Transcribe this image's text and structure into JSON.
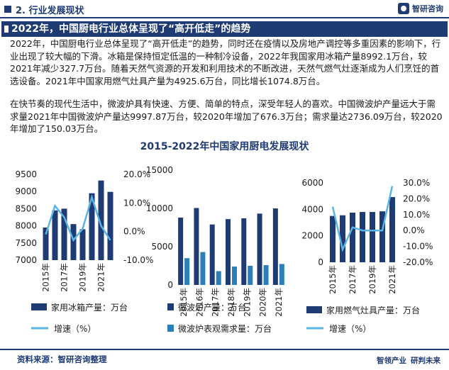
{
  "header": {
    "section": "2. 行业发展现状",
    "brand": "智研咨询"
  },
  "headline": "2022年，中国厨电行业总体呈现了“高开低走”的趋势",
  "paragraphs": [
    "2022年，中国厨电行业总体呈现了“高开低走”的趋势，同时还在疫情以及房地产调控等多重因素的影响下，行业出现了较大幅的下滑。冰箱是保持恒定低温的一种制冷设备，2022年我国家用冰箱产量8992.1万台，较2021年减少327.7万台。随着天然气资源的开发和利用技术的不断改进，天然气燃气灶逐渐成为人们烹饪的首选设备。2021年中国家用燃气灶具产量为4925.6万台，同比增长1074.8万台。",
    "在快节奏的现代生活中，微波炉具有快速、方便、简单的特点，深受年轻人的喜欢。中国微波炉产量远大于需求量2021年中国微波炉产量达9997.87万台，较2020年增加了676.3万台；需求量达2736.09万台，较2020年增加了150.03万台。"
  ],
  "chart_title": "2015-2022年中国家用厨电发展现状",
  "colors": {
    "bar_dark": "#1f3b73",
    "bar_teal": "#2b7fb8",
    "line": "#5ab4e6"
  },
  "chart_data": [
    {
      "type": "bar",
      "categories": [
        "2015年",
        "2016年",
        "2017年",
        "2018年",
        "2019年",
        "2020年",
        "2021年",
        "2022年"
      ],
      "tick_labels": [
        "2015年",
        "2017年",
        "2019年",
        "2021年"
      ],
      "series": [
        {
          "name": "家用冰箱产量：万台",
          "axis": "left",
          "values": [
            7950,
            8450,
            8500,
            8050,
            7900,
            8950,
            9320,
            8990
          ]
        },
        {
          "name": "增速（%）",
          "axis": "right",
          "kind": "line",
          "values": [
            -0.01,
            0.09,
            0.05,
            -0.03,
            0.01,
            0.12,
            0.02,
            -0.03
          ]
        }
      ],
      "y_left": {
        "min": 7000,
        "max": 9500,
        "ticks": [
          "7000",
          "7500",
          "8000",
          "8500",
          "9000",
          "9500"
        ]
      },
      "y_right": {
        "min": -0.1,
        "max": 0.2,
        "ticks": [
          "-10.0%",
          "0.0%",
          "10.0%",
          "20.0%"
        ]
      }
    },
    {
      "type": "bar",
      "categories": [
        "2015年",
        "2016年",
        "2017年",
        "2018年",
        "2019年",
        "2020年",
        "2021年"
      ],
      "tick_labels": [
        "2015年",
        "2016年",
        "2017年",
        "2018年",
        "2019年",
        "2020年",
        "2021年"
      ],
      "series": [
        {
          "name": "微波炉产量：万台",
          "values": [
            8800,
            10050,
            7900,
            8600,
            8700,
            9320,
            9998
          ]
        },
        {
          "name": "微波炉表观需求量：万台",
          "values": [
            3500,
            4300,
            1800,
            2400,
            2500,
            2586,
            2736
          ]
        }
      ],
      "y_left": {
        "min": 0,
        "max": 15000,
        "ticks": [
          "0",
          "5000",
          "10000",
          "15000"
        ]
      }
    },
    {
      "type": "bar",
      "categories": [
        "2015年",
        "2016年",
        "2017年",
        "2018年",
        "2019年",
        "2020年",
        "2021年"
      ],
      "tick_labels": [
        "2015年",
        "2017年",
        "2019年",
        "2021年"
      ],
      "series": [
        {
          "name": "家用燃气灶具产量：万台",
          "axis": "left",
          "values": [
            3500,
            3550,
            3750,
            3800,
            3800,
            3850,
            4926
          ]
        },
        {
          "name": "增速（%）",
          "axis": "right",
          "kind": "line",
          "values": [
            0.15,
            -0.12,
            0.02,
            0.0,
            0.0,
            0.0,
            0.28
          ]
        }
      ],
      "y_left": {
        "min": 0,
        "max": 6000,
        "ticks": [
          "0",
          "2000",
          "4000",
          "6000"
        ]
      },
      "y_right": {
        "min": -0.2,
        "max": 0.3,
        "ticks": [
          "-20.0%",
          "-10.0%",
          "0.0%",
          "10.0%",
          "20.0%",
          "30.0%"
        ]
      }
    }
  ],
  "footer": {
    "source": "资料来源：智研咨询整理",
    "slogan_left": "智领产业",
    "slogan_right": "研判未来"
  }
}
